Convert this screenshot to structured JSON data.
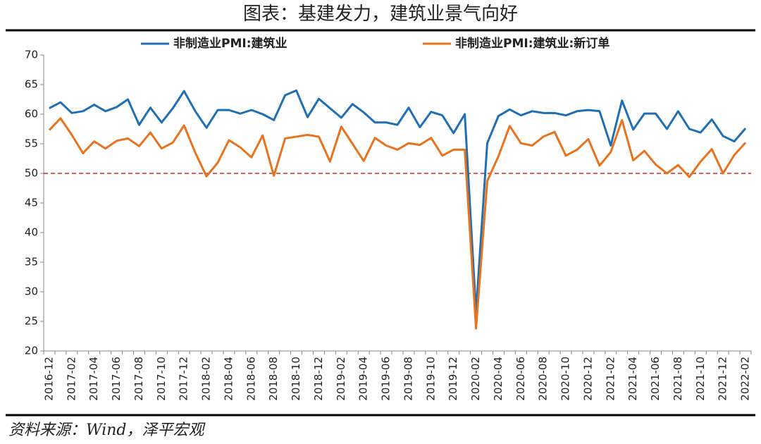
{
  "chart_data": {
    "type": "line",
    "title": "图表：基建发力，建筑业景气向好",
    "source": "资料来源：Wind，泽平宏观",
    "categories": [
      "2016-12",
      null,
      "2017-02",
      null,
      "2017-04",
      null,
      "2017-06",
      null,
      "2017-08",
      null,
      "2017-10",
      null,
      "2017-12",
      null,
      "2018-02",
      null,
      "2018-04",
      null,
      "2018-06",
      null,
      "2018-08",
      null,
      "2018-10",
      null,
      "2018-12",
      null,
      "2019-02",
      null,
      "2019-04",
      null,
      "2019-06",
      null,
      "2019-08",
      null,
      "2019-10",
      null,
      "2019-12",
      null,
      "2020-02",
      null,
      "2020-04",
      null,
      "2020-06",
      null,
      "2020-08",
      null,
      "2020-10",
      null,
      "2020-12",
      null,
      "2021-02",
      null,
      "2021-04",
      null,
      "2021-06",
      null,
      "2021-08",
      null,
      "2021-10",
      null,
      "2021-12",
      null,
      "2022-02"
    ],
    "series": [
      {
        "name": "非制造业PMI:建筑业",
        "color": "#1f6fb5",
        "values": [
          61.0,
          62.0,
          60.2,
          60.5,
          61.6,
          60.5,
          61.2,
          62.5,
          58.2,
          61.1,
          58.6,
          61.0,
          63.9,
          60.5,
          57.7,
          60.7,
          60.7,
          60.1,
          60.7,
          60.0,
          59.0,
          63.2,
          64.0,
          59.5,
          62.6,
          61.0,
          59.4,
          61.7,
          60.3,
          58.6,
          58.6,
          58.2,
          61.1,
          57.8,
          60.4,
          59.8,
          56.8,
          60.0,
          26.6,
          55.1,
          59.7,
          60.8,
          59.8,
          60.5,
          60.2,
          60.2,
          59.8,
          60.5,
          60.7,
          60.5,
          54.7,
          62.3,
          57.4,
          60.1,
          60.1,
          57.5,
          60.5,
          57.5,
          56.9,
          59.1,
          56.3,
          55.4,
          57.6
        ]
      },
      {
        "name": "非制造业PMI:建筑业:新订单",
        "color": "#e8731e",
        "values": [
          57.3,
          59.3,
          56.5,
          53.4,
          55.4,
          54.2,
          55.5,
          55.9,
          54.6,
          56.9,
          54.2,
          55.2,
          58.1,
          53.5,
          49.5,
          51.8,
          55.6,
          54.4,
          52.7,
          56.4,
          49.6,
          55.9,
          56.2,
          56.5,
          56.2,
          52.0,
          57.9,
          55.0,
          52.1,
          56.0,
          54.7,
          54.0,
          55.1,
          54.8,
          56.0,
          53.0,
          54.0,
          54.0,
          23.8,
          48.7,
          52.9,
          58.0,
          55.1,
          54.7,
          56.2,
          57.0,
          53.0,
          54.0,
          55.8,
          51.3,
          53.6,
          59.0,
          52.2,
          53.8,
          51.5,
          50.0,
          51.4,
          49.4,
          52.0,
          54.1,
          50.0,
          53.1,
          55.2
        ]
      }
    ],
    "reference_line": {
      "value": 50,
      "color": "#e02020"
    },
    "ylim": [
      20,
      70
    ],
    "yticks": [
      20,
      25,
      30,
      35,
      40,
      45,
      50,
      55,
      60,
      65,
      70
    ],
    "grid": false,
    "legend": "top"
  }
}
